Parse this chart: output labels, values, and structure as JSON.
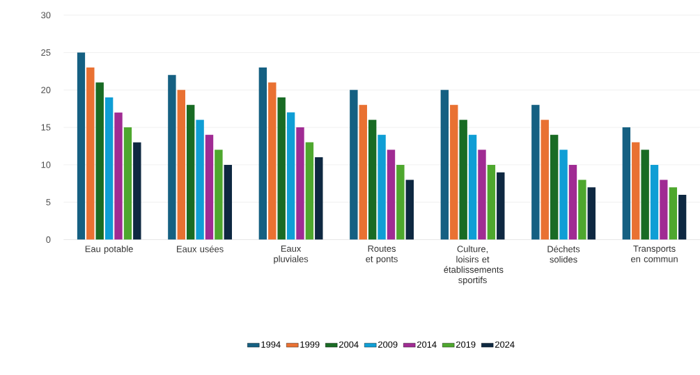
{
  "chart_data": {
    "type": "bar",
    "categories": [
      "Eau potable",
      "Eaux usées",
      "Eaux pluviales",
      "Routes et ponts",
      "Culture, loisirs et établissements sportifs",
      "Déchets solides",
      "Transports en commun"
    ],
    "series": [
      {
        "name": "1994",
        "color": "#156082",
        "values": [
          25,
          22,
          23,
          20,
          20,
          18,
          15
        ]
      },
      {
        "name": "1999",
        "color": "#e97132",
        "values": [
          23,
          20,
          21,
          18,
          18,
          16,
          13
        ]
      },
      {
        "name": "2004",
        "color": "#196b24",
        "values": [
          21,
          18,
          19,
          16,
          16,
          14,
          12
        ]
      },
      {
        "name": "2009",
        "color": "#0f9ed5",
        "values": [
          19,
          16,
          17,
          14,
          14,
          12,
          10
        ]
      },
      {
        "name": "2014",
        "color": "#a02b93",
        "values": [
          17,
          14,
          15,
          12,
          12,
          10,
          8
        ]
      },
      {
        "name": "2019",
        "color": "#4ea72e",
        "values": [
          15,
          12,
          13,
          10,
          10,
          8,
          7
        ]
      },
      {
        "name": "2024",
        "color": "#0e2841",
        "values": [
          13,
          10,
          11,
          8,
          9,
          7,
          6
        ]
      }
    ],
    "ylim": [
      0,
      30
    ],
    "yticks": [
      0,
      5,
      10,
      15,
      20,
      25,
      30
    ],
    "grid": "y",
    "legend": "bottom"
  }
}
